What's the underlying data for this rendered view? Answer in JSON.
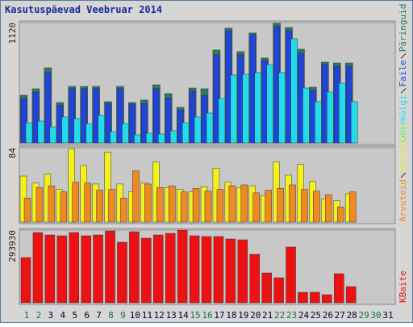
{
  "chart_data": [
    {
      "type": "bar",
      "title": "Kasutuspäevad Veebruar 2014",
      "ylim": [
        0,
        1120
      ],
      "yticks": [
        1120
      ],
      "series": [
        {
          "name": "Päringuid",
          "color": "#2e7a55",
          "values": [
            444,
            504,
            699,
            376,
            526,
            526,
            526,
            384,
            526,
            376,
            399,
            541,
            459,
            331,
            511,
            504,
            865,
            1068,
            850,
            1023,
            790,
            1113,
            1075,
            872,
            519,
            752,
            744,
            744,
            null,
            null,
            null
          ]
        },
        {
          "name": "Faile",
          "color": "#1f44dd",
          "values": [
            414,
            474,
            654,
            353,
            504,
            504,
            504,
            368,
            504,
            361,
            368,
            504,
            421,
            308,
            481,
            444,
            820,
            1045,
            820,
            1008,
            767,
            1083,
            1045,
            835,
            489,
            729,
            714,
            714,
            null,
            null,
            null
          ]
        },
        {
          "name": "Lehekülgi",
          "color": "#22dde8",
          "values": [
            188,
            203,
            150,
            241,
            226,
            180,
            256,
            105,
            180,
            75,
            90,
            83,
            113,
            188,
            241,
            278,
            414,
            632,
            639,
            654,
            729,
            654,
            970,
            511,
            384,
            474,
            556,
            384,
            null,
            null,
            null
          ]
        }
      ]
    },
    {
      "type": "bar",
      "ylim": [
        0,
        84
      ],
      "yticks": [
        84
      ],
      "series": [
        {
          "name": "Külastusi",
          "color": "#f4f01c",
          "values": [
            52,
            44,
            54,
            37,
            83,
            64,
            43,
            79,
            43,
            34,
            44,
            68,
            39,
            37,
            34,
            40,
            61,
            45,
            39,
            41,
            30,
            68,
            53,
            65,
            46,
            26,
            24,
            32,
            null,
            null,
            null
          ]
        },
        {
          "name": "Arvuteid",
          "color": "#f08a1e",
          "values": [
            27,
            39,
            41,
            34,
            45,
            44,
            36,
            37,
            27,
            58,
            43,
            39,
            41,
            34,
            38,
            35,
            37,
            41,
            42,
            33,
            36,
            38,
            42,
            37,
            35,
            31,
            17,
            34,
            null,
            null,
            null
          ]
        }
      ]
    },
    {
      "type": "bar",
      "ylim": [
        0,
        293930
      ],
      "yticks": [
        293930
      ],
      "categories": [
        "1",
        "2",
        "3",
        "4",
        "5",
        "6",
        "7",
        "8",
        "9",
        "10",
        "11",
        "12",
        "13",
        "14",
        "15",
        "16",
        "17",
        "18",
        "19",
        "20",
        "21",
        "22",
        "23",
        "24",
        "25",
        "26",
        "27",
        "28",
        "29",
        "30",
        "31"
      ],
      "category_colors": [
        "#117744",
        "#117744",
        "#000033",
        "#000033",
        "#000033",
        "#000033",
        "#000033",
        "#117744",
        "#117744",
        "#000033",
        "#000033",
        "#000033",
        "#000033",
        "#000033",
        "#117744",
        "#117744",
        "#000033",
        "#000033",
        "#000033",
        "#000033",
        "#000033",
        "#117744",
        "#117744",
        "#000033",
        "#000033",
        "#000033",
        "#000033",
        "#000033",
        "#117744",
        "#117744",
        "#000033"
      ],
      "series": [
        {
          "name": "KBaite",
          "color": "#ee1111",
          "values": [
            182900,
            284100,
            274300,
            271000,
            284100,
            271000,
            274300,
            290600,
            244900,
            287400,
            261300,
            274300,
            280900,
            293930,
            271000,
            267800,
            267800,
            258000,
            254700,
            196000,
            120800,
            101200,
            225400,
            42500,
            42500,
            32700,
            117600,
            65300,
            null,
            null,
            null
          ]
        }
      ]
    }
  ]
}
